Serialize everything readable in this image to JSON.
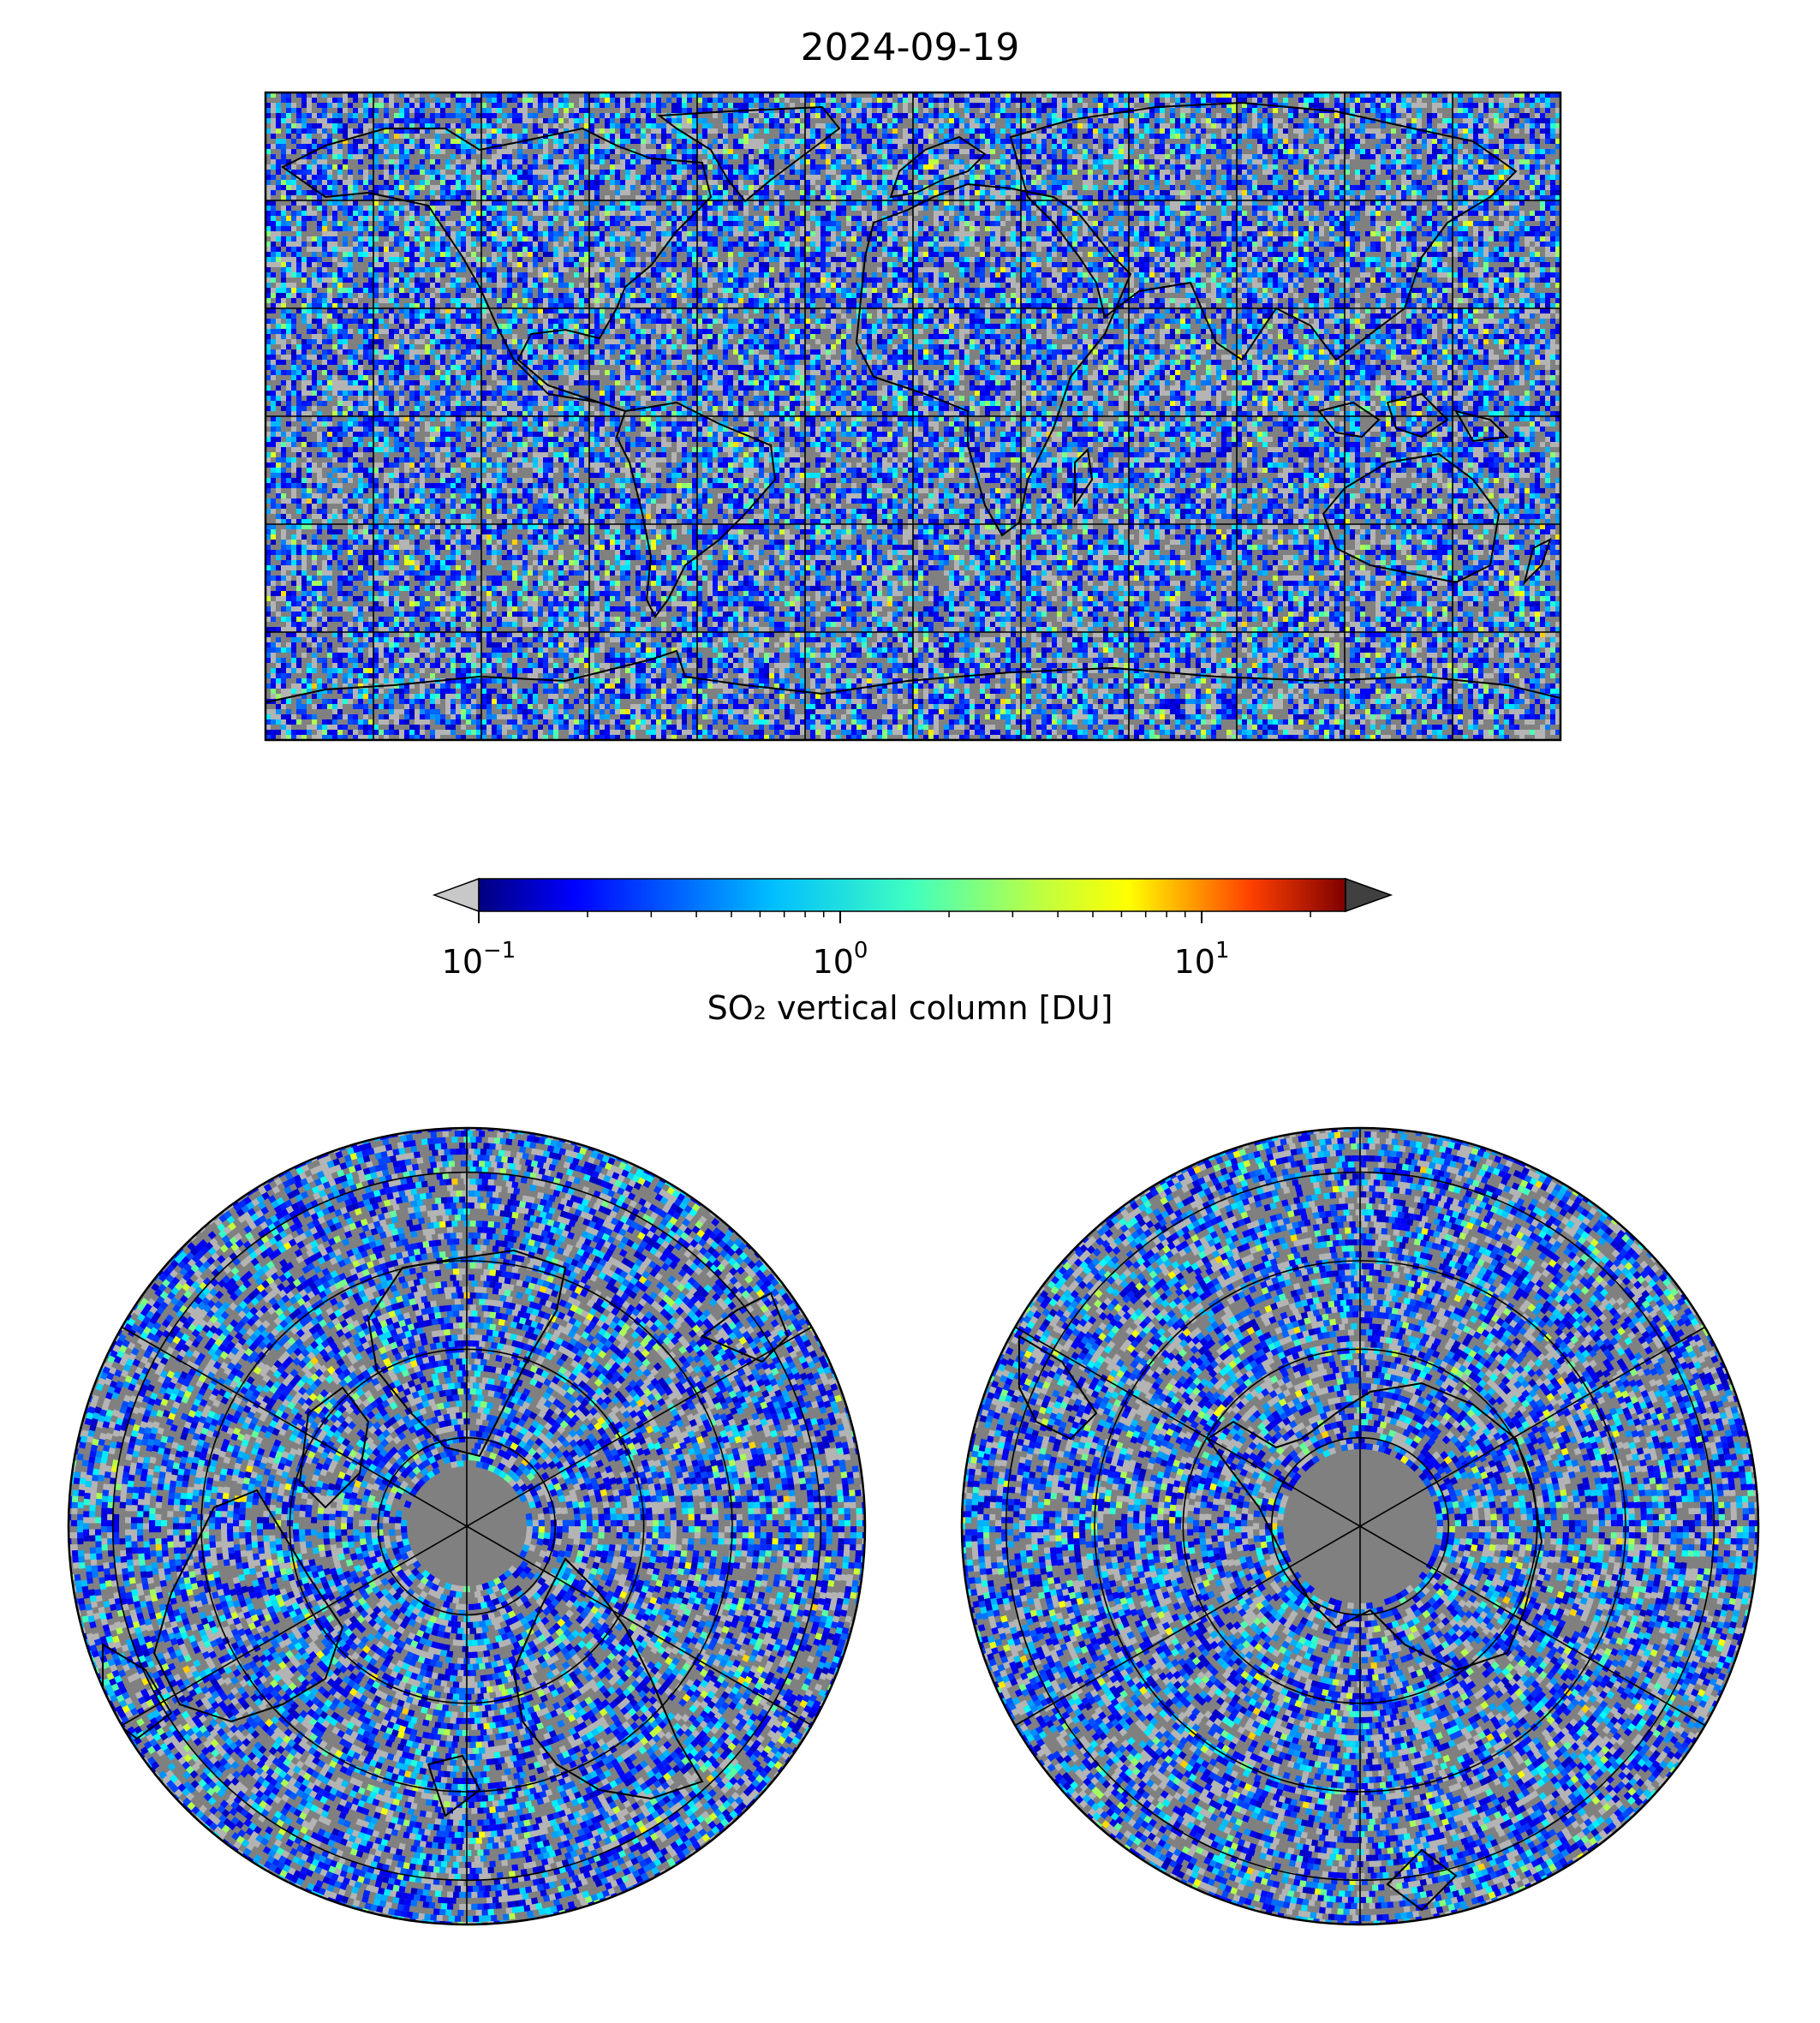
{
  "figure": {
    "title": "2024-09-19",
    "colorbar": {
      "label": "SO₂ vertical column [DU]",
      "scale": "log",
      "range": [
        0.1,
        25
      ],
      "ticks": [
        {
          "base": "10",
          "exp": "−1",
          "value": 0.1
        },
        {
          "base": "10",
          "exp": "0",
          "value": 1
        },
        {
          "base": "10",
          "exp": "1",
          "value": 10
        }
      ],
      "colormap": "jet",
      "under_color": "#c8c8c8",
      "over_color": "#404040",
      "extend": "both"
    },
    "maps": [
      {
        "name": "global-map",
        "projection": "equirectangular",
        "gridlines_lon_deg": 30,
        "gridlines_lat_deg": 30
      },
      {
        "name": "north-polar-map",
        "projection": "north-polar-stereographic",
        "gridlines_lon_deg": 60,
        "gridlines_lat_deg": 20
      },
      {
        "name": "south-polar-map",
        "projection": "south-polar-stereographic",
        "gridlines_lon_deg": 60,
        "gridlines_lat_deg": 20
      }
    ],
    "colors": {
      "no_data": "#808080",
      "below_range": "#b4b4b4",
      "coastline": "#000000",
      "gridline": "#000000"
    }
  }
}
